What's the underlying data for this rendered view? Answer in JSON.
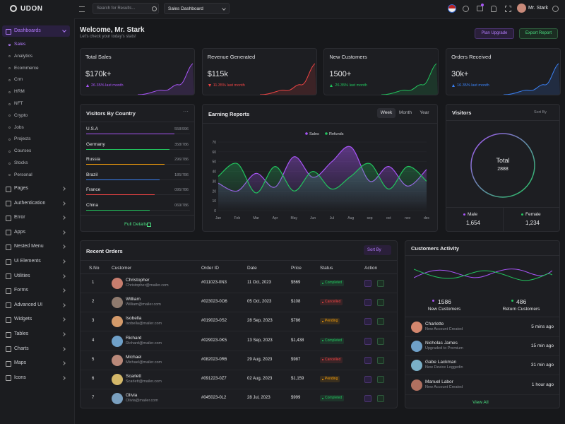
{
  "header": {
    "brand": "UDON",
    "search_placeholder": "Search for Results...",
    "dashboard_select": "Sales Dashboard",
    "user_name": "Mr. Stark"
  },
  "sidebar": {
    "items": [
      {
        "label": "Dashboards",
        "children": [
          "Sales",
          "Analytics",
          "Ecommerce",
          "Crm",
          "HRM",
          "NFT",
          "Crypto",
          "Jobs",
          "Projects",
          "Courses",
          "Stocks",
          "Personal"
        ]
      },
      {
        "label": "Pages"
      },
      {
        "label": "Authentication"
      },
      {
        "label": "Error"
      },
      {
        "label": "Apps"
      },
      {
        "label": "Nested Menu"
      },
      {
        "label": "Ui Elements"
      },
      {
        "label": "Utilities"
      },
      {
        "label": "Forms"
      },
      {
        "label": "Advanced UI"
      },
      {
        "label": "Widgets"
      },
      {
        "label": "Tables"
      },
      {
        "label": "Charts"
      },
      {
        "label": "Maps"
      },
      {
        "label": "Icons"
      }
    ]
  },
  "welcome": {
    "title": "Welcome, Mr. Stark",
    "subtitle": "Let's check your today's stats!",
    "buttons": [
      "Plan Upgrade",
      "Export Report"
    ]
  },
  "stats": [
    {
      "title": "Total Sales",
      "value": "$170k+",
      "change": "26.35% last month",
      "trend": "up",
      "color": "#a855f7"
    },
    {
      "title": "Revenue Generated",
      "value": "$115k",
      "change": "11.35% last month",
      "trend": "down",
      "color": "#ef4444"
    },
    {
      "title": "New Customers",
      "value": "1500+",
      "change": "26.35% last month",
      "trend": "up",
      "color": "#22c55e"
    },
    {
      "title": "Orders Received",
      "value": "30k+",
      "change": "16.35% last month",
      "trend": "up",
      "color": "#3b82f6"
    }
  ],
  "visitors_by_country": {
    "title": "Visitors By Country",
    "rows": [
      {
        "country": "U.S.A",
        "value": "558/996",
        "color": "#a855f7"
      },
      {
        "country": "Germany",
        "value": "358/786",
        "color": "#22c55e"
      },
      {
        "country": "Russia",
        "value": "296/786",
        "color": "#f59e0b"
      },
      {
        "country": "Brazil",
        "value": "185/786",
        "color": "#3b82f6"
      },
      {
        "country": "France",
        "value": "095/786",
        "color": "#ef4444"
      },
      {
        "country": "China",
        "value": "069/786",
        "color": "#22c55e"
      }
    ],
    "link": "Full Details"
  },
  "earning_reports": {
    "title": "Earning Reports",
    "tabs": [
      "Week",
      "Month",
      "Year"
    ],
    "chart": {
      "type": "line",
      "categories": [
        "Jan",
        "Feb",
        "Mar",
        "Apr",
        "May",
        "Jun",
        "Jul",
        "Aug",
        "sep",
        "oct",
        "nov",
        "dec"
      ],
      "series": [
        {
          "name": "Sales",
          "color": "#a855f7",
          "values": [
            28,
            20,
            38,
            24,
            55,
            34,
            50,
            65,
            30,
            45,
            25,
            42
          ]
        },
        {
          "name": "Refunds",
          "color": "#22c55e",
          "values": [
            35,
            48,
            18,
            45,
            20,
            40,
            22,
            35,
            48,
            22,
            45,
            30
          ]
        }
      ],
      "ylim": [
        0,
        70
      ],
      "yticks": [
        0,
        10,
        20,
        30,
        40,
        50,
        60,
        70
      ],
      "grid": true
    }
  },
  "visitors": {
    "title": "Visitors",
    "sort": "Sort By",
    "total_label": "Total",
    "total": "2888",
    "male_label": "Male",
    "male": "1,654",
    "female_label": "Female",
    "female": "1,234"
  },
  "recent_orders": {
    "title": "Recent Orders",
    "sort": "Sort By",
    "columns": [
      "S.No",
      "Customer",
      "Order ID",
      "Date",
      "Price",
      "Status",
      "Action"
    ],
    "rows": [
      {
        "no": "1",
        "name": "Christopher",
        "email": "Christopher@mailer.com",
        "order_id": "#011023-0N3",
        "date": "11 Oct, 2023",
        "price": "$569",
        "status": "Completed",
        "status_color": "#22c55e"
      },
      {
        "no": "2",
        "name": "William",
        "email": "William@mailer.com",
        "order_id": "#023023-0O6",
        "date": "05 Oct, 2023",
        "price": "$108",
        "status": "Cancelled",
        "status_color": "#ef4444"
      },
      {
        "no": "3",
        "name": "Isobella",
        "email": "Isobella@mailer.com",
        "order_id": "#019023-0S2",
        "date": "28 Sep, 2023",
        "price": "$786",
        "status": "Pending",
        "status_color": "#f59e0b"
      },
      {
        "no": "4",
        "name": "Richard",
        "email": "Richard@mailer.com",
        "order_id": "#029023-0K5",
        "date": "13 Sep, 2023",
        "price": "$1,438",
        "status": "Completed",
        "status_color": "#22c55e"
      },
      {
        "no": "5",
        "name": "Michael",
        "email": "Michael@mailer.com",
        "order_id": "#082023-0R6",
        "date": "29 Aug, 2023",
        "price": "$987",
        "status": "Cancelled",
        "status_color": "#ef4444"
      },
      {
        "no": "6",
        "name": "Scarlett",
        "email": "Scarlett@mailer.com",
        "order_id": "#091223-0Z7",
        "date": "02 Aug, 2023",
        "price": "$1,159",
        "status": "Pending",
        "status_color": "#f59e0b"
      },
      {
        "no": "7",
        "name": "Olivia",
        "email": "Olivia@mailer.com",
        "order_id": "#045023-0L2",
        "date": "28 Jul, 2023",
        "price": "$999",
        "status": "Completed",
        "status_color": "#22c55e"
      }
    ]
  },
  "customers_activity": {
    "title": "Customers Activity",
    "new_customers": "1586",
    "new_label": "New Customers",
    "returning": "486",
    "returning_label": "Return Customers",
    "feed": [
      {
        "name": "Charlette",
        "action": "New Account Created",
        "time": "5 mins ago"
      },
      {
        "name": "Nicholas James",
        "action": "Upgraded to Premium",
        "time": "15 min ago"
      },
      {
        "name": "Gabe Lackman",
        "action": "New Device Loggedin",
        "time": "31 min ago"
      },
      {
        "name": "Manuel Labor",
        "action": "New Account Created",
        "time": "1 hour ago"
      }
    ],
    "link": "View All"
  }
}
